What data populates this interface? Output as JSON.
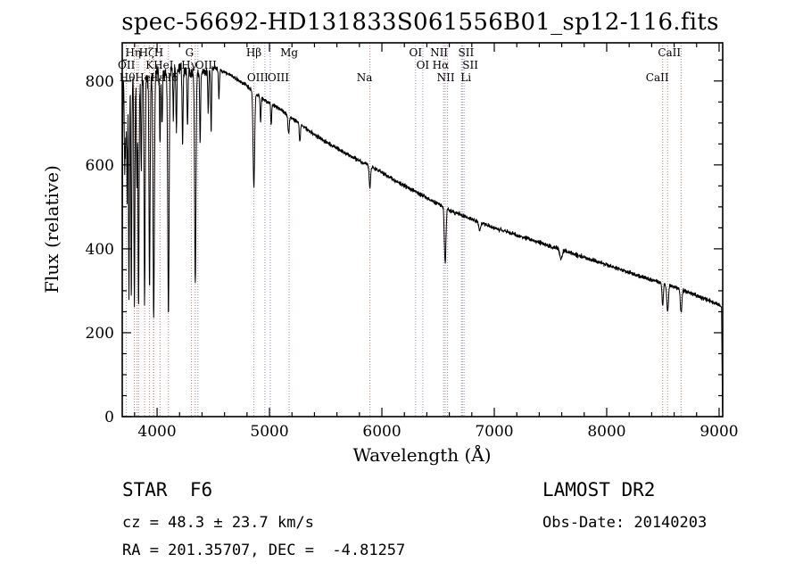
{
  "footer": {
    "class_line": "STAR  F6",
    "survey": "LAMOST DR2",
    "cz": "cz = 48.3 ± 23.7 km/s",
    "obs_date": "Obs-Date: 20140203",
    "coords": "RA = 201.35707, DEC =  -4.81257"
  },
  "chart_data": {
    "type": "line",
    "title": "spec-56692-HD131833S061556B01_sp12-116.fits",
    "xlabel": "Wavelength (Å)",
    "ylabel": "Flux (relative)",
    "xlim": [
      3690,
      9032
    ],
    "ylim": [
      0,
      891
    ],
    "x_major_ticks": [
      4000,
      5000,
      6000,
      7000,
      8000,
      9000
    ],
    "x_minor_step": 200,
    "y_major_ticks": [
      0,
      200,
      400,
      600,
      800
    ],
    "y_minor_step": 50,
    "spectrum_color": "#000000",
    "spectrum_end": 9030,
    "line_colors": {
      "abs": "#c17d7d",
      "em": "#9090c4"
    },
    "noise": {
      "base": 6,
      "blue_extra": 30,
      "blue_cutoff": 4600,
      "seed": 56692
    },
    "continuum": [
      [
        3690,
        130
      ],
      [
        3693,
        620
      ],
      [
        3698,
        795
      ],
      [
        3720,
        800
      ],
      [
        3760,
        805
      ],
      [
        3800,
        810
      ],
      [
        3850,
        805
      ],
      [
        3900,
        812
      ],
      [
        3950,
        808
      ],
      [
        4000,
        820
      ],
      [
        4050,
        818
      ],
      [
        4100,
        822
      ],
      [
        4150,
        825
      ],
      [
        4200,
        828
      ],
      [
        4250,
        822
      ],
      [
        4300,
        818
      ],
      [
        4350,
        820
      ],
      [
        4400,
        818
      ],
      [
        4450,
        825
      ],
      [
        4500,
        830
      ],
      [
        4550,
        828
      ],
      [
        4600,
        822
      ],
      [
        4650,
        815
      ],
      [
        4700,
        805
      ],
      [
        4750,
        798
      ],
      [
        4800,
        788
      ],
      [
        4830,
        782
      ],
      [
        4890,
        768
      ],
      [
        4950,
        755
      ],
      [
        5000,
        748
      ],
      [
        5100,
        732
      ],
      [
        5200,
        712
      ],
      [
        5300,
        692
      ],
      [
        5400,
        672
      ],
      [
        5500,
        655
      ],
      [
        5600,
        640
      ],
      [
        5700,
        625
      ],
      [
        5800,
        610
      ],
      [
        5900,
        596
      ],
      [
        6000,
        582
      ],
      [
        6100,
        566
      ],
      [
        6200,
        550
      ],
      [
        6300,
        536
      ],
      [
        6400,
        522
      ],
      [
        6500,
        507
      ],
      [
        6600,
        492
      ],
      [
        6700,
        481
      ],
      [
        6800,
        470
      ],
      [
        6900,
        460
      ],
      [
        7000,
        450
      ],
      [
        7100,
        442
      ],
      [
        7200,
        433
      ],
      [
        7300,
        424
      ],
      [
        7400,
        415
      ],
      [
        7500,
        406
      ],
      [
        7600,
        397
      ],
      [
        7700,
        389
      ],
      [
        7800,
        380
      ],
      [
        7900,
        371
      ],
      [
        8000,
        362
      ],
      [
        8100,
        353
      ],
      [
        8200,
        344
      ],
      [
        8300,
        335
      ],
      [
        8400,
        326
      ],
      [
        8500,
        317
      ],
      [
        8600,
        309
      ],
      [
        8700,
        299
      ],
      [
        8800,
        289
      ],
      [
        8900,
        278
      ],
      [
        9000,
        266
      ],
      [
        9022,
        260
      ],
      [
        9030,
        8
      ]
    ],
    "absorption_features": [
      [
        3712,
        190,
        4
      ],
      [
        3722,
        150,
        4
      ],
      [
        3734,
        270,
        4
      ],
      [
        3750,
        520,
        4
      ],
      [
        3771,
        520,
        4
      ],
      [
        3798,
        545,
        4.5
      ],
      [
        3820,
        240,
        4
      ],
      [
        3835,
        550,
        4.5
      ],
      [
        3859,
        200,
        4
      ],
      [
        3889,
        540,
        5
      ],
      [
        3933,
        505,
        5
      ],
      [
        3970,
        575,
        6
      ],
      [
        4026,
        170,
        4
      ],
      [
        4045,
        130,
        4
      ],
      [
        4101,
        585,
        6
      ],
      [
        4144,
        110,
        4
      ],
      [
        4172,
        150,
        4
      ],
      [
        4227,
        185,
        4
      ],
      [
        4271,
        130,
        4
      ],
      [
        4340,
        505,
        6
      ],
      [
        4383,
        170,
        4
      ],
      [
        4455,
        100,
        4
      ],
      [
        4481,
        150,
        4
      ],
      [
        4550,
        70,
        4
      ],
      [
        4861,
        228,
        7
      ],
      [
        4921,
        60,
        4
      ],
      [
        5015,
        50,
        4
      ],
      [
        5170,
        45,
        6
      ],
      [
        5270,
        45,
        5
      ],
      [
        5893,
        52,
        6
      ],
      [
        6563,
        132,
        7
      ],
      [
        6870,
        20,
        8
      ],
      [
        7594,
        24,
        10
      ],
      [
        8498,
        50,
        6
      ],
      [
        8542,
        64,
        7
      ],
      [
        8662,
        57,
        7
      ]
    ],
    "spectral_lines": [
      {
        "wl": 3727,
        "label": "OII",
        "row": 2,
        "k": "em",
        "dx": 0
      },
      {
        "wl": 3798,
        "label": "Hθ",
        "row": 3,
        "k": "abs",
        "dx": -8
      },
      {
        "wl": 3820,
        "label": "HeI",
        "row": 3,
        "k": "abs",
        "dx": 9
      },
      {
        "wl": 3835,
        "label": "Hη",
        "row": 1,
        "k": "abs",
        "dx": -6
      },
      {
        "wl": 3889,
        "label": "Hζ",
        "row": 1,
        "k": "abs",
        "dx": 2
      },
      {
        "wl": 3933,
        "label": "K",
        "row": 2,
        "k": "abs",
        "dx": 0
      },
      {
        "wl": 3968,
        "label": "H",
        "row": 1,
        "k": "abs",
        "dx": 6
      },
      {
        "wl": 3970,
        "label": "Hε",
        "row": 3,
        "k": "abs",
        "dx": 4
      },
      {
        "wl": 4026,
        "label": "HeI",
        "row": 2,
        "k": "abs",
        "dx": 4
      },
      {
        "wl": 4101,
        "label": "Hδ",
        "row": 3,
        "k": "abs",
        "dx": 2
      },
      {
        "wl": 4305,
        "label": "G",
        "row": 1,
        "k": "abs",
        "dx": -2
      },
      {
        "wl": 4340,
        "label": "Hγ",
        "row": 2,
        "k": "abs",
        "dx": -7
      },
      {
        "wl": 4363,
        "label": "OIII",
        "row": 2,
        "k": "em",
        "dx": 9
      },
      {
        "wl": 4861,
        "label": "Hβ",
        "row": 1,
        "k": "abs",
        "dx": 0
      },
      {
        "wl": 4959,
        "label": "OIII",
        "row": 3,
        "k": "em",
        "dx": -8
      },
      {
        "wl": 5007,
        "label": "OIII",
        "row": 3,
        "k": "em",
        "dx": 9
      },
      {
        "wl": 5175,
        "label": "Mg",
        "row": 1,
        "k": "abs",
        "dx": 0
      },
      {
        "wl": 5893,
        "label": "Na",
        "row": 3,
        "k": "abs",
        "dx": -6
      },
      {
        "wl": 6300,
        "label": "OI",
        "row": 1,
        "k": "em",
        "dx": 0
      },
      {
        "wl": 6364,
        "label": "OI",
        "row": 2,
        "k": "em",
        "dx": 0
      },
      {
        "wl": 6548,
        "label": "NII",
        "row": 1,
        "k": "em",
        "dx": -5
      },
      {
        "wl": 6563,
        "label": "Hα",
        "row": 2,
        "k": "abs",
        "dx": -5
      },
      {
        "wl": 6584,
        "label": "NII",
        "row": 3,
        "k": "em",
        "dx": -2
      },
      {
        "wl": 6708,
        "label": "Li",
        "row": 3,
        "k": "abs",
        "dx": 5
      },
      {
        "wl": 6717,
        "label": "SII",
        "row": 1,
        "k": "em",
        "dx": 4
      },
      {
        "wl": 6731,
        "label": "SII",
        "row": 2,
        "k": "em",
        "dx": 7
      },
      {
        "wl": 8498,
        "label": "CaII",
        "row": 3,
        "k": "abs",
        "dx": -6
      },
      {
        "wl": 8542,
        "label": "CaII",
        "row": 1,
        "k": "abs",
        "dx": 2
      },
      {
        "wl": 8662,
        "label": "",
        "row": 2,
        "k": "abs",
        "dx": 0
      }
    ]
  }
}
